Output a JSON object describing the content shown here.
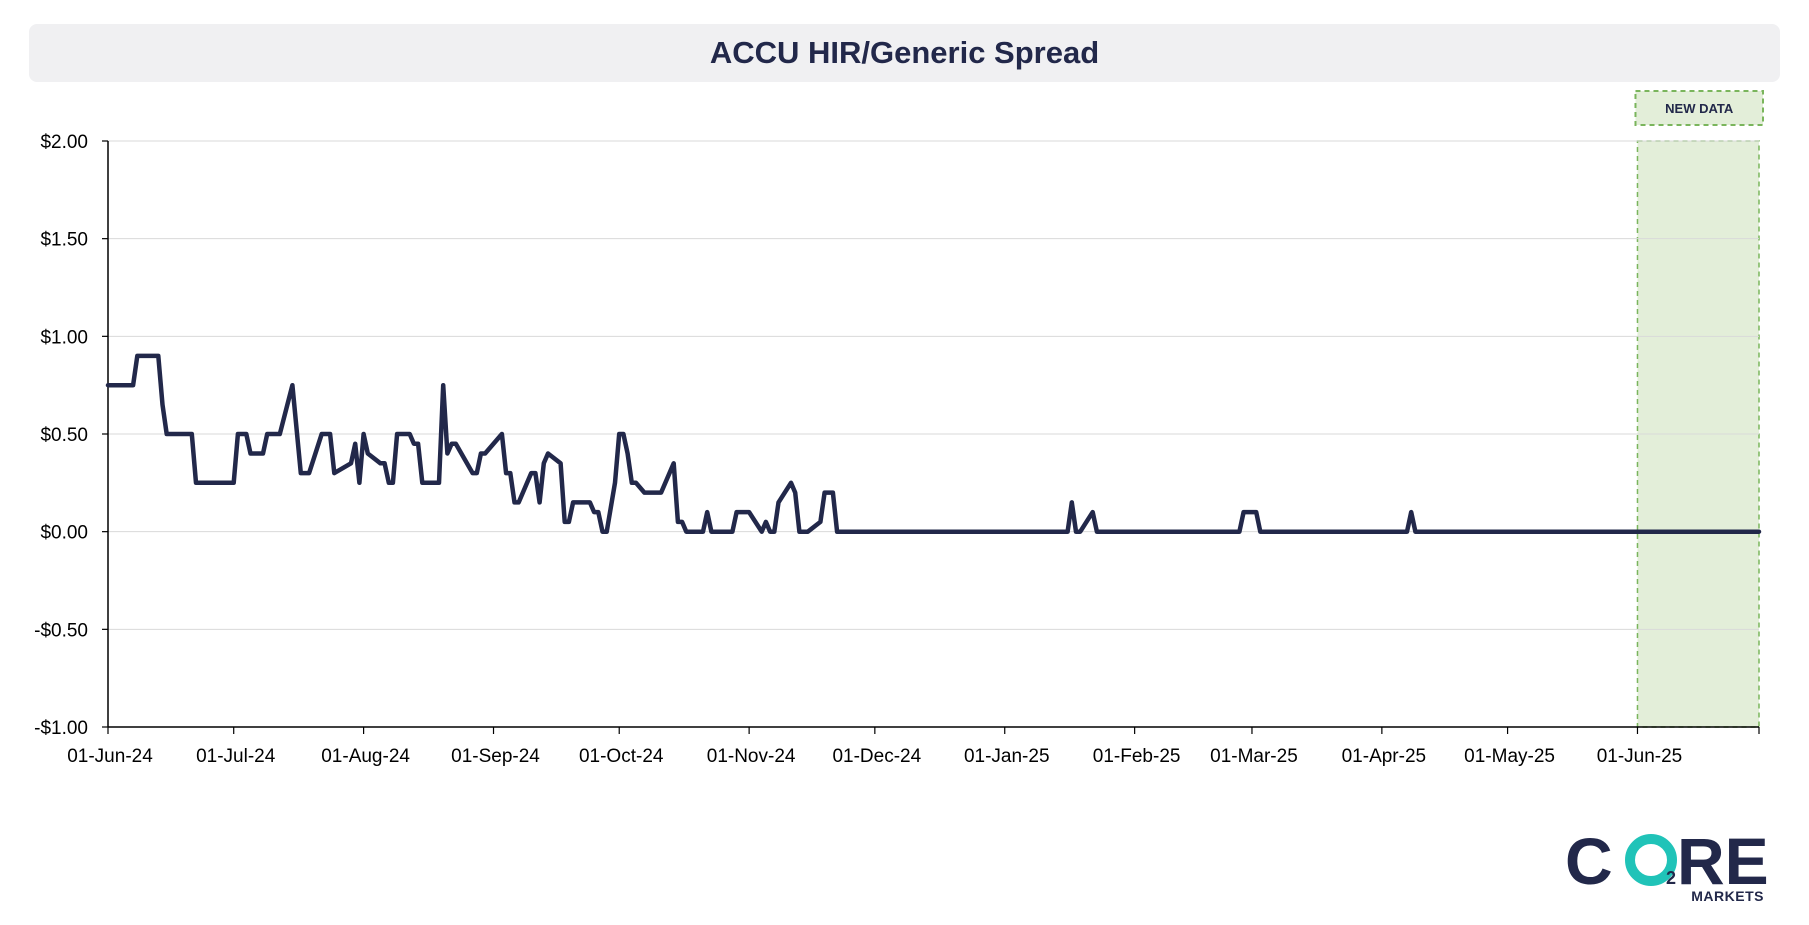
{
  "chart_data": {
    "type": "line",
    "title": "ACCU HIR/Generic Spread",
    "xlabel": "",
    "ylabel": "",
    "ylim": [
      -1.0,
      2.0
    ],
    "yticks": [
      {
        "value": 2.0,
        "label": "$2.00"
      },
      {
        "value": 1.5,
        "label": "$1.50"
      },
      {
        "value": 1.0,
        "label": "$1.00"
      },
      {
        "value": 0.5,
        "label": "$0.50"
      },
      {
        "value": 0.0,
        "label": "$0.00"
      },
      {
        "value": -0.5,
        "label": "-$0.50"
      },
      {
        "value": -1.0,
        "label": "-$1.00"
      }
    ],
    "xlim": [
      "2024-06-01",
      "2025-06-30"
    ],
    "xticks": [
      {
        "date": "2024-06-01",
        "label": "01-Jun-24"
      },
      {
        "date": "2024-07-01",
        "label": "01-Jul-24"
      },
      {
        "date": "2024-08-01",
        "label": "01-Aug-24"
      },
      {
        "date": "2024-09-01",
        "label": "01-Sep-24"
      },
      {
        "date": "2024-10-01",
        "label": "01-Oct-24"
      },
      {
        "date": "2024-11-01",
        "label": "01-Nov-24"
      },
      {
        "date": "2024-12-01",
        "label": "01-Dec-24"
      },
      {
        "date": "2025-01-01",
        "label": "01-Jan-25"
      },
      {
        "date": "2025-02-01",
        "label": "01-Feb-25"
      },
      {
        "date": "2025-03-01",
        "label": "01-Mar-25"
      },
      {
        "date": "2025-04-01",
        "label": "01-Apr-25"
      },
      {
        "date": "2025-05-01",
        "label": "01-May-25"
      },
      {
        "date": "2025-06-01",
        "label": "01-Jun-25"
      }
    ],
    "grid": true,
    "new_data_region": {
      "label": "NEW DATA",
      "start": "2025-06-01",
      "end": "2025-06-30"
    },
    "series": [
      {
        "points": [
          [
            "2024-06-01",
            0.75
          ],
          [
            "2024-06-07",
            0.75
          ],
          [
            "2024-06-08",
            0.9
          ],
          [
            "2024-06-13",
            0.9
          ],
          [
            "2024-06-14",
            0.65
          ],
          [
            "2024-06-15",
            0.5
          ],
          [
            "2024-06-21",
            0.5
          ],
          [
            "2024-06-22",
            0.25
          ],
          [
            "2024-07-01",
            0.25
          ],
          [
            "2024-07-02",
            0.5
          ],
          [
            "2024-07-04",
            0.5
          ],
          [
            "2024-07-05",
            0.4
          ],
          [
            "2024-07-08",
            0.4
          ],
          [
            "2024-07-09",
            0.5
          ],
          [
            "2024-07-12",
            0.5
          ],
          [
            "2024-07-15",
            0.75
          ],
          [
            "2024-07-17",
            0.3
          ],
          [
            "2024-07-19",
            0.3
          ],
          [
            "2024-07-22",
            0.5
          ],
          [
            "2024-07-24",
            0.5
          ],
          [
            "2024-07-25",
            0.3
          ],
          [
            "2024-07-29",
            0.35
          ],
          [
            "2024-07-30",
            0.45
          ],
          [
            "2024-07-31",
            0.25
          ],
          [
            "2024-08-01",
            0.5
          ],
          [
            "2024-08-02",
            0.4
          ],
          [
            "2024-08-05",
            0.35
          ],
          [
            "2024-08-06",
            0.35
          ],
          [
            "2024-08-07",
            0.25
          ],
          [
            "2024-08-08",
            0.25
          ],
          [
            "2024-08-09",
            0.5
          ],
          [
            "2024-08-12",
            0.5
          ],
          [
            "2024-08-13",
            0.45
          ],
          [
            "2024-08-14",
            0.45
          ],
          [
            "2024-08-15",
            0.25
          ],
          [
            "2024-08-19",
            0.25
          ],
          [
            "2024-08-20",
            0.75
          ],
          [
            "2024-08-21",
            0.4
          ],
          [
            "2024-08-22",
            0.45
          ],
          [
            "2024-08-23",
            0.45
          ],
          [
            "2024-08-27",
            0.3
          ],
          [
            "2024-08-28",
            0.3
          ],
          [
            "2024-08-29",
            0.4
          ],
          [
            "2024-08-30",
            0.4
          ],
          [
            "2024-09-03",
            0.5
          ],
          [
            "2024-09-04",
            0.3
          ],
          [
            "2024-09-05",
            0.3
          ],
          [
            "2024-09-06",
            0.15
          ],
          [
            "2024-09-07",
            0.15
          ],
          [
            "2024-09-10",
            0.3
          ],
          [
            "2024-09-11",
            0.3
          ],
          [
            "2024-09-12",
            0.15
          ],
          [
            "2024-09-13",
            0.35
          ],
          [
            "2024-09-14",
            0.4
          ],
          [
            "2024-09-17",
            0.35
          ],
          [
            "2024-09-18",
            0.05
          ],
          [
            "2024-09-19",
            0.05
          ],
          [
            "2024-09-20",
            0.15
          ],
          [
            "2024-09-24",
            0.15
          ],
          [
            "2024-09-25",
            0.1
          ],
          [
            "2024-09-26",
            0.1
          ],
          [
            "2024-09-27",
            0.0
          ],
          [
            "2024-09-28",
            0.0
          ],
          [
            "2024-09-30",
            0.25
          ],
          [
            "2024-10-01",
            0.5
          ],
          [
            "2024-10-02",
            0.5
          ],
          [
            "2024-10-03",
            0.4
          ],
          [
            "2024-10-04",
            0.25
          ],
          [
            "2024-10-05",
            0.25
          ],
          [
            "2024-10-07",
            0.2
          ],
          [
            "2024-10-11",
            0.2
          ],
          [
            "2024-10-14",
            0.35
          ],
          [
            "2024-10-15",
            0.05
          ],
          [
            "2024-10-16",
            0.05
          ],
          [
            "2024-10-17",
            0.0
          ],
          [
            "2024-10-21",
            0.0
          ],
          [
            "2024-10-22",
            0.1
          ],
          [
            "2024-10-23",
            0.0
          ],
          [
            "2024-10-28",
            0.0
          ],
          [
            "2024-10-29",
            0.1
          ],
          [
            "2024-11-01",
            0.1
          ],
          [
            "2024-11-04",
            0.0
          ],
          [
            "2024-11-05",
            0.05
          ],
          [
            "2024-11-06",
            0.0
          ],
          [
            "2024-11-07",
            0.0
          ],
          [
            "2024-11-08",
            0.15
          ],
          [
            "2024-11-11",
            0.25
          ],
          [
            "2024-11-12",
            0.2
          ],
          [
            "2024-11-13",
            0.0
          ],
          [
            "2024-11-15",
            0.0
          ],
          [
            "2024-11-18",
            0.05
          ],
          [
            "2024-11-19",
            0.2
          ],
          [
            "2024-11-21",
            0.2
          ],
          [
            "2024-11-22",
            0.0
          ],
          [
            "2025-01-16",
            0.0
          ],
          [
            "2025-01-17",
            0.15
          ],
          [
            "2025-01-18",
            0.0
          ],
          [
            "2025-01-19",
            0.0
          ],
          [
            "2025-01-22",
            0.1
          ],
          [
            "2025-01-23",
            0.0
          ],
          [
            "2025-02-26",
            0.0
          ],
          [
            "2025-02-27",
            0.1
          ],
          [
            "2025-03-02",
            0.1
          ],
          [
            "2025-03-03",
            0.0
          ],
          [
            "2025-04-07",
            0.0
          ],
          [
            "2025-04-08",
            0.1
          ],
          [
            "2025-04-09",
            0.0
          ],
          [
            "2025-06-30",
            0.0
          ]
        ]
      }
    ],
    "colors": {
      "line": "#22284a",
      "new_data_fill": "#e3eed9",
      "new_data_border": "#7ab55c",
      "grid": "#d9d9d9",
      "axis": "#000000"
    }
  },
  "logo": {
    "word": "C RE",
    "subscript": "2",
    "tagline": "MARKETS",
    "accent": "#20c3b8"
  }
}
